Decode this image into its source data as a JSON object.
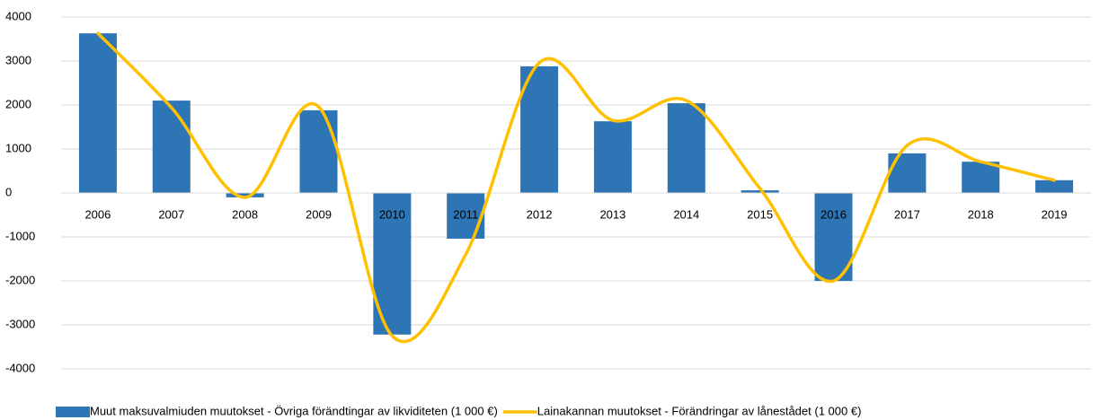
{
  "chart_data": {
    "type": "bar",
    "categories": [
      "2006",
      "2007",
      "2008",
      "2009",
      "2010",
      "2011",
      "2012",
      "2013",
      "2014",
      "2015",
      "2016",
      "2017",
      "2018",
      "2019"
    ],
    "series": [
      {
        "name": "Muut maksuvalmiuden muutokset - Övriga förändtingar av likviditeten (1 000 €)",
        "type": "bar",
        "color": "#2e75b6",
        "values": [
          3630,
          2100,
          -100,
          1880,
          -3220,
          -1040,
          2880,
          1630,
          2040,
          60,
          -2000,
          900,
          710,
          290
        ]
      },
      {
        "name": "Lainakannan muutokset - Förändringar av lånestådet (1 000 €)",
        "type": "line",
        "color": "#ffc000",
        "values": [
          3630,
          1940,
          -100,
          1960,
          -3250,
          -1400,
          2960,
          1650,
          2100,
          100,
          -2000,
          1080,
          710,
          290
        ]
      }
    ],
    "ylim": [
      -4000,
      4000
    ],
    "yticks": [
      -4000,
      -3000,
      -2000,
      -1000,
      0,
      1000,
      2000,
      3000,
      4000
    ],
    "grid": true,
    "legend": "bottom"
  }
}
